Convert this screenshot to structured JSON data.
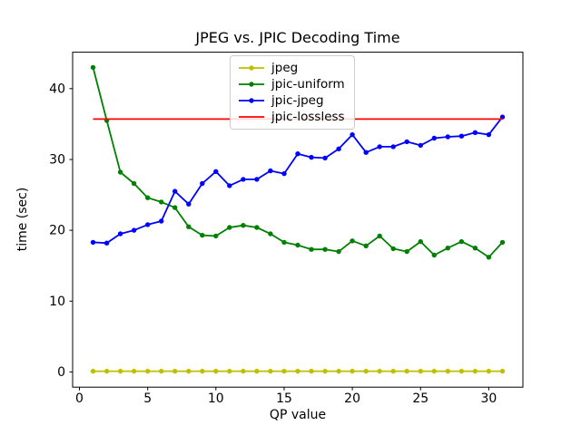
{
  "chart_data": {
    "type": "line",
    "title": "JPEG vs. JPIC Decoding Time",
    "xlabel": "QP value",
    "ylabel": "time (sec)",
    "xlim": [
      -0.5,
      32.5
    ],
    "ylim": [
      -2.15,
      45.15
    ],
    "xticks": [
      0,
      5,
      10,
      15,
      20,
      25,
      30
    ],
    "yticks": [
      0,
      10,
      20,
      30,
      40
    ],
    "grid": false,
    "legend_position": "upper center",
    "x": [
      1,
      2,
      3,
      4,
      5,
      6,
      7,
      8,
      9,
      10,
      11,
      12,
      13,
      14,
      15,
      16,
      17,
      18,
      19,
      20,
      21,
      22,
      23,
      24,
      25,
      26,
      27,
      28,
      29,
      30,
      31
    ],
    "series": [
      {
        "name": "jpeg",
        "color": "#bfbf00",
        "marker": true,
        "values": [
          0.1,
          0.1,
          0.1,
          0.1,
          0.1,
          0.1,
          0.1,
          0.1,
          0.1,
          0.1,
          0.1,
          0.1,
          0.1,
          0.1,
          0.1,
          0.1,
          0.1,
          0.1,
          0.1,
          0.1,
          0.1,
          0.1,
          0.1,
          0.1,
          0.1,
          0.1,
          0.1,
          0.1,
          0.1,
          0.1,
          0.1
        ]
      },
      {
        "name": "jpic-uniform",
        "color": "#008000",
        "marker": true,
        "values": [
          43.0,
          35.5,
          28.2,
          26.6,
          24.6,
          24.0,
          23.2,
          20.5,
          19.3,
          19.2,
          20.4,
          20.7,
          20.4,
          19.5,
          18.3,
          17.9,
          17.3,
          17.3,
          17.0,
          18.5,
          17.8,
          19.2,
          17.4,
          17.0,
          18.4,
          16.5,
          17.5,
          18.4,
          17.5,
          16.2,
          18.3
        ]
      },
      {
        "name": "jpic-jpeg",
        "color": "#0000ff",
        "marker": true,
        "values": [
          18.3,
          18.2,
          19.5,
          20.0,
          20.8,
          21.3,
          25.5,
          23.7,
          26.6,
          28.3,
          26.3,
          27.2,
          27.2,
          28.4,
          28.0,
          30.8,
          30.3,
          30.2,
          31.5,
          33.5,
          31.0,
          31.8,
          31.8,
          32.5,
          32.0,
          33.0,
          33.2,
          33.3,
          33.8,
          33.5,
          36.0
        ]
      },
      {
        "name": "jpic-lossless",
        "color": "#ff0000",
        "marker": false,
        "values": [
          35.7,
          35.7,
          35.7,
          35.7,
          35.7,
          35.7,
          35.7,
          35.7,
          35.7,
          35.7,
          35.7,
          35.7,
          35.7,
          35.7,
          35.7,
          35.7,
          35.7,
          35.7,
          35.7,
          35.7,
          35.7,
          35.7,
          35.7,
          35.7,
          35.7,
          35.7,
          35.7,
          35.7,
          35.7,
          35.7,
          35.7
        ]
      }
    ]
  }
}
